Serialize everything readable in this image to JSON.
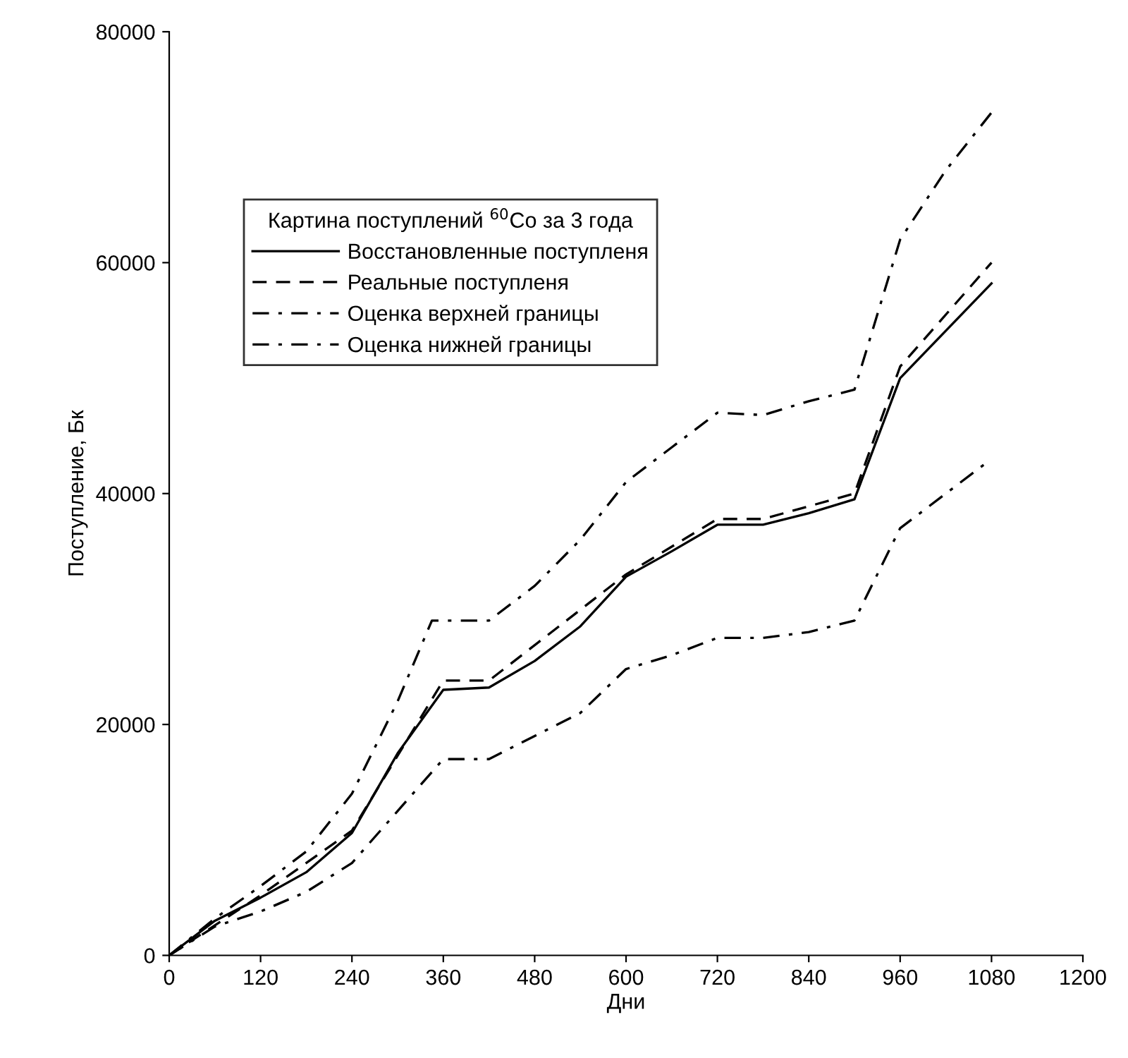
{
  "chart_data": {
    "type": "line",
    "xlabel": "Дни",
    "ylabel": "Поступление, Бк",
    "legend_title": "Картина поступлений $^{60}$Co за 3 года",
    "xlim": [
      0,
      1200
    ],
    "xticks": [
      0,
      120,
      240,
      360,
      480,
      600,
      720,
      840,
      960,
      1080,
      1200
    ],
    "ylim": [
      0,
      80000
    ],
    "yticks": [
      0,
      20000,
      40000,
      60000,
      80000
    ],
    "grid": false,
    "legend": "top left",
    "marker": "none",
    "series": [
      {
        "name": "Восстановленные поступленя",
        "color": "#000000",
        "line_style": "solid",
        "x": [
          0,
          60,
          120,
          180,
          240,
          300,
          360,
          420,
          480,
          540,
          600,
          660,
          720,
          780,
          840,
          900,
          960,
          1080
        ],
        "values": [
          0,
          3000,
          5000,
          7200,
          10600,
          17500,
          23000,
          23200,
          25500,
          28500,
          32800,
          35000,
          37300,
          37300,
          38300,
          39500,
          50000,
          58200
        ]
      },
      {
        "name": "Реальные поступленя",
        "color": "#000000",
        "line_style": "dashed",
        "x": [
          0,
          120,
          240,
          360,
          420,
          600,
          720,
          780,
          900,
          960,
          1080
        ],
        "values": [
          0,
          5200,
          10800,
          23800,
          23800,
          33000,
          37800,
          37800,
          40000,
          51000,
          60000
        ]
      },
      {
        "name": "Оценка верхней границы",
        "color": "#000000",
        "line_style": "dashdot",
        "x": [
          0,
          60,
          120,
          180,
          240,
          300,
          345,
          420,
          480,
          540,
          600,
          660,
          720,
          780,
          840,
          900,
          960,
          1020,
          1080
        ],
        "values": [
          0,
          3200,
          6000,
          9000,
          14000,
          22000,
          29000,
          29000,
          32000,
          36000,
          41000,
          44000,
          47000,
          46800,
          48000,
          49000,
          62000,
          68000,
          73000
        ]
      },
      {
        "name": "Оценка нижней границы",
        "color": "#000000",
        "line_style": "dashdot",
        "x": [
          0,
          60,
          120,
          180,
          240,
          300,
          360,
          420,
          480,
          540,
          600,
          660,
          720,
          780,
          840,
          900,
          960,
          1070
        ],
        "values": [
          0,
          2500,
          3800,
          5500,
          8000,
          12500,
          17000,
          17000,
          19000,
          21000,
          24800,
          26000,
          27500,
          27500,
          28000,
          29000,
          37000,
          42500
        ]
      }
    ]
  }
}
